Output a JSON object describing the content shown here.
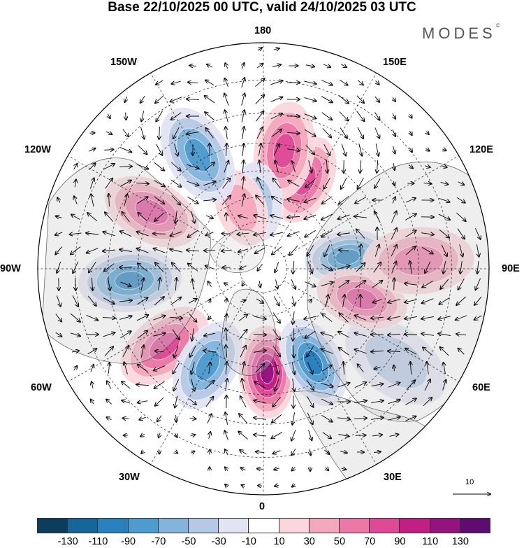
{
  "header": {
    "title": "Base 22/10/2025 00 UTC, valid 24/10/2025 03 UTC"
  },
  "brand": {
    "name": "MODES",
    "mark": "©"
  },
  "map": {
    "projection": "north polar stereographic",
    "longitude_labels": {
      "lon_180": "180",
      "lon_150w": "150W",
      "lon_150e": "150E",
      "lon_120w": "120W",
      "lon_120e": "120E",
      "lon_90w": "90W",
      "lon_90e": "90E",
      "lon_60w": "60W",
      "lon_60e": "60E",
      "lon_30w": "30W",
      "lon_30e": "30E",
      "lon_0": "0"
    },
    "wind_reference": {
      "value": "10"
    }
  },
  "colorbar": {
    "ticks": [
      "-130",
      "-110",
      "-90",
      "-70",
      "-50",
      "-30",
      "-10",
      "10",
      "30",
      "50",
      "70",
      "90",
      "110",
      "130"
    ],
    "colors": [
      "#0d3d5c",
      "#15679a",
      "#2a7fbd",
      "#4e9ccf",
      "#83b4dc",
      "#b5c8e5",
      "#e3e4f3",
      "#ffffff",
      "#fbd6dc",
      "#f4a8bd",
      "#ec78a7",
      "#df4a97",
      "#c21f85",
      "#94137f",
      "#5e0c6f"
    ]
  },
  "anomaly_centers": [
    {
      "id": "c1",
      "value": -95,
      "lon": 98,
      "lat": 55
    },
    {
      "id": "c2",
      "value": 85,
      "lon": 155,
      "lat": 50
    },
    {
      "id": "c3",
      "value": 70,
      "lon": 170,
      "lat": 42
    },
    {
      "id": "c4",
      "value": -35,
      "lon": 185,
      "lat": 62
    },
    {
      "id": "c5",
      "value": 40,
      "lon": 200,
      "lat": 63
    },
    {
      "id": "c6",
      "value": -75,
      "lon": 210,
      "lat": 38
    },
    {
      "id": "c7",
      "value": 85,
      "lon": 243,
      "lat": 40
    },
    {
      "id": "c8",
      "value": -95,
      "lon": 275,
      "lat": 37
    },
    {
      "id": "c9",
      "value": 80,
      "lon": 308,
      "lat": 40
    },
    {
      "id": "c10",
      "value": -80,
      "lon": 330,
      "lat": 45
    },
    {
      "id": "c11",
      "value": 125,
      "lon": 2,
      "lat": 48
    },
    {
      "id": "c12",
      "value": -105,
      "lon": 28,
      "lat": 47
    },
    {
      "id": "c13",
      "value": -45,
      "lon": 55,
      "lat": 28
    },
    {
      "id": "c14",
      "value": 85,
      "lon": 73,
      "lat": 48
    },
    {
      "id": "c15",
      "value": 65,
      "lon": 93,
      "lat": 30
    }
  ]
}
